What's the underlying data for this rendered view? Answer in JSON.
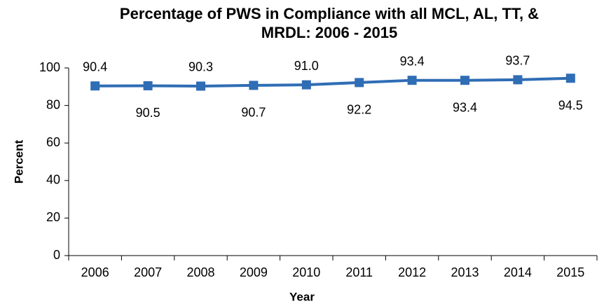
{
  "chart_data": {
    "type": "line",
    "title": [
      "Percentage of PWS in Compliance with all MCL, AL, TT, &",
      "MRDL: 2006 - 2015"
    ],
    "x_label": "Year",
    "y_label": "Percent",
    "categories": [
      "2006",
      "2007",
      "2008",
      "2009",
      "2010",
      "2011",
      "2012",
      "2013",
      "2014",
      "2015"
    ],
    "series": [
      {
        "color": "#2f6db5",
        "values": [
          90.4,
          90.5,
          90.3,
          90.7,
          91.0,
          92.2,
          93.4,
          93.4,
          93.7,
          94.5
        ],
        "value_labels": [
          "90.4",
          "90.5",
          "90.3",
          "90.7",
          "91.0",
          "92.2",
          "93.4",
          "93.4",
          "93.7",
          "94.5"
        ]
      }
    ],
    "ylim": [
      0,
      100
    ],
    "yticks": [
      0,
      20,
      40,
      60,
      80,
      100
    ],
    "grid": false
  }
}
